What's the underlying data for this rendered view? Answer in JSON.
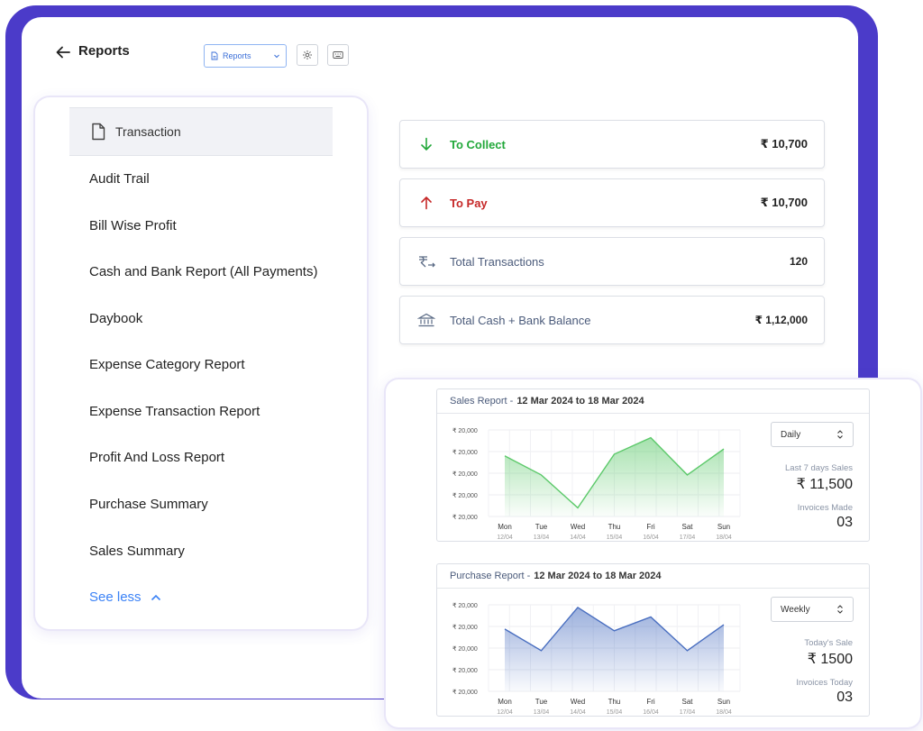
{
  "header": {
    "title": "Reports",
    "report_select": "Reports"
  },
  "report_list": {
    "active_item": "Transaction",
    "items": [
      "Audit Trail",
      "Bill Wise Profit",
      "Cash and Bank Report (All Payments)",
      "Daybook",
      "Expense Category Report",
      "Expense Transaction Report",
      "Profit And Loss Report",
      "Purchase Summary",
      "Sales Summary"
    ],
    "see_less": "See less"
  },
  "summary": [
    {
      "icon": "arrow-down-icon",
      "label": "To Collect",
      "value": "₹ 10,700",
      "color": "#22a83a"
    },
    {
      "icon": "arrow-up-icon",
      "label": "To Pay",
      "value": "₹ 10,700",
      "color": "#c62828"
    },
    {
      "icon": "rupee-transfer-icon",
      "label": "Total Transactions",
      "value": "120",
      "color": "#4a5a7a"
    },
    {
      "icon": "bank-icon",
      "label": "Total Cash + Bank Balance",
      "value": "₹ 1,12,000",
      "color": "#4a5a7a"
    }
  ],
  "sales_report": {
    "title": "Sales Report -",
    "dates": "12 Mar 2024 to 18 Mar 2024",
    "period": "Daily",
    "stat1_label": "Last 7 days Sales",
    "stat1_value": "₹ 11,500",
    "stat2_label": "Invoices Made",
    "stat2_value": "03"
  },
  "purchase_report": {
    "title": "Purchase Report -",
    "dates": "12 Mar 2024 to 18 Mar 2024",
    "period": "Weekly",
    "stat1_label": "Today's Sale",
    "stat1_value": "₹ 1500",
    "stat2_label": "Invoices Today",
    "stat2_value": "03"
  },
  "chart_data": [
    {
      "type": "area",
      "title": "Sales Report",
      "categories": [
        "Mon",
        "Tue",
        "Wed",
        "Thu",
        "Fri",
        "Sat",
        "Sun"
      ],
      "sublabels": [
        "12/04",
        "13/04",
        "14/04",
        "15/04",
        "16/04",
        "17/04",
        "18/04"
      ],
      "y_tick_labels": [
        "₹ 20,000",
        "₹ 20,000",
        "₹ 20,000",
        "₹ 20,000",
        "₹ 20,000"
      ],
      "values": [
        0.7,
        0.48,
        0.1,
        0.72,
        0.91,
        0.48,
        0.78
      ],
      "color": "#5cc96a",
      "grid": true
    },
    {
      "type": "area",
      "title": "Purchase Report",
      "categories": [
        "Mon",
        "Tue",
        "Wed",
        "Thu",
        "Fri",
        "Sat",
        "Sun"
      ],
      "sublabels": [
        "12/04",
        "13/04",
        "14/04",
        "15/04",
        "16/04",
        "17/04",
        "18/04"
      ],
      "y_tick_labels": [
        "₹ 20,000",
        "₹ 20,000",
        "₹ 20,000",
        "₹ 20,000",
        "₹ 20,000"
      ],
      "values": [
        0.72,
        0.47,
        0.97,
        0.7,
        0.86,
        0.47,
        0.77
      ],
      "color": "#4a6fc0",
      "grid": true
    }
  ]
}
